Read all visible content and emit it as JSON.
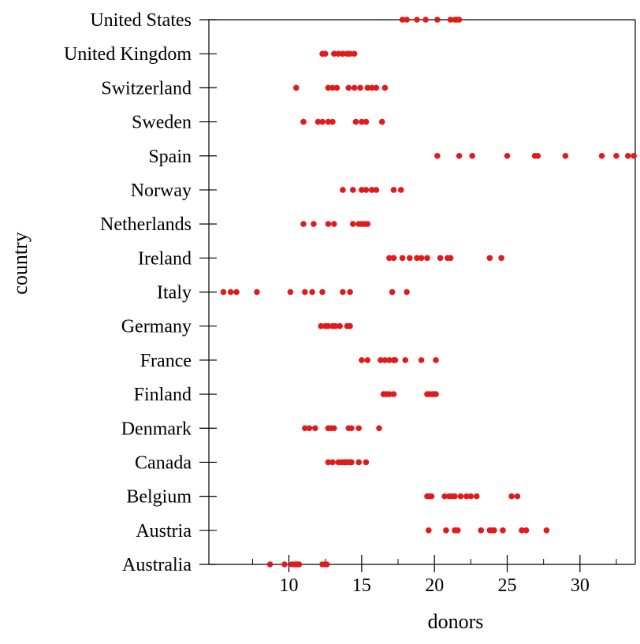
{
  "chart_data": {
    "type": "scatter",
    "title": "",
    "xlabel": "donors",
    "ylabel": "country",
    "xlim": [
      4.5,
      33.8
    ],
    "xticks": [
      10,
      15,
      20,
      25,
      30
    ],
    "xtick_labels": [
      "10",
      "15",
      "20",
      "25",
      "30"
    ],
    "grid": false,
    "point_color": "#e31a1c",
    "categories": [
      "Australia",
      "Austria",
      "Belgium",
      "Canada",
      "Denmark",
      "Finland",
      "France",
      "Germany",
      "Italy",
      "Ireland",
      "Netherlands",
      "Norway",
      "Spain",
      "Sweden",
      "Switzerland",
      "United Kingdom",
      "United States"
    ],
    "points": {
      "Australia": [
        8.7,
        9.7,
        10.2,
        10.4,
        10.5,
        10.6,
        10.7,
        12.3,
        12.5,
        12.6
      ],
      "Austria": [
        19.6,
        20.8,
        21.4,
        21.6,
        23.2,
        23.8,
        24.0,
        24.1,
        24.7,
        26.0,
        26.3,
        27.7
      ],
      "Belgium": [
        19.5,
        19.6,
        19.8,
        20.7,
        21.0,
        21.2,
        21.4,
        21.8,
        22.2,
        22.5,
        22.9,
        25.3,
        25.7
      ],
      "Canada": [
        12.7,
        13.0,
        13.4,
        13.6,
        13.8,
        13.9,
        14.0,
        14.2,
        14.3,
        14.8,
        15.3
      ],
      "Denmark": [
        11.1,
        11.4,
        11.8,
        12.7,
        12.9,
        13.1,
        14.1,
        14.3,
        14.8,
        16.2
      ],
      "Finland": [
        16.5,
        16.7,
        16.9,
        17.2,
        19.5,
        19.7,
        19.9,
        20.1
      ],
      "France": [
        15.0,
        15.4,
        16.3,
        16.6,
        16.9,
        17.2,
        17.3,
        18.0,
        19.1,
        20.1
      ],
      "Germany": [
        12.2,
        12.5,
        12.7,
        13.0,
        13.2,
        13.5,
        14.0,
        14.2
      ],
      "Italy": [
        5.5,
        6.0,
        6.4,
        7.8,
        10.1,
        11.1,
        11.6,
        12.3,
        13.7,
        14.2,
        17.1,
        18.1
      ],
      "Ireland": [
        16.9,
        17.2,
        17.8,
        18.3,
        18.8,
        19.1,
        19.5,
        20.4,
        20.9,
        21.1,
        23.8,
        24.6
      ],
      "Netherlands": [
        11.0,
        11.7,
        12.7,
        13.1,
        14.4,
        14.8,
        15.0,
        15.2,
        15.4
      ],
      "Norway": [
        13.7,
        14.4,
        15.0,
        15.3,
        15.7,
        16.0,
        17.2,
        17.7
      ],
      "Spain": [
        20.2,
        21.7,
        22.6,
        25.0,
        26.9,
        27.1,
        29.0,
        31.5,
        32.5,
        33.3,
        33.7
      ],
      "Sweden": [
        11.0,
        12.0,
        12.3,
        12.7,
        13.0,
        14.6,
        15.0,
        15.3,
        16.4
      ],
      "Switzerland": [
        10.5,
        12.7,
        13.0,
        13.3,
        14.1,
        14.5,
        14.9,
        15.4,
        15.7,
        16.0,
        16.6
      ],
      "United Kingdom": [
        12.3,
        12.5,
        13.1,
        13.4,
        13.7,
        14.0,
        14.2,
        14.5
      ],
      "United States": [
        17.8,
        18.1,
        18.8,
        19.4,
        20.2,
        21.1,
        21.4,
        21.5,
        21.7
      ]
    }
  }
}
